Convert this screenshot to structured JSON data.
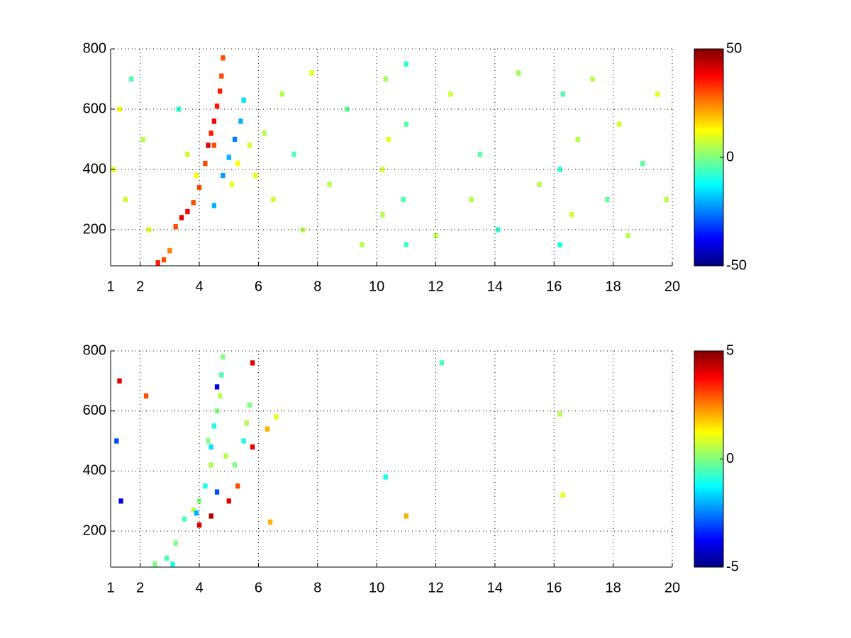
{
  "chart_data": [
    {
      "type": "heatmap",
      "colormap": "jet",
      "xlim": [
        1,
        20
      ],
      "ylim": [
        80,
        800
      ],
      "xticks": [
        1,
        2,
        4,
        6,
        8,
        10,
        12,
        14,
        16,
        18,
        20
      ],
      "yticks": [
        200,
        400,
        600,
        800
      ],
      "clim": [
        -50,
        50
      ],
      "cticks": [
        -50,
        0,
        50
      ],
      "grid": true,
      "x": [
        1.1,
        1.3,
        1.5,
        1.7,
        2.1,
        2.3,
        2.6,
        2.8,
        3.0,
        3.2,
        3.4,
        3.6,
        3.8,
        4.0,
        4.2,
        4.3,
        4.4,
        4.5,
        4.6,
        4.7,
        4.75,
        4.8,
        4.5,
        3.3,
        3.6,
        3.9,
        4.5,
        4.8,
        5.0,
        5.2,
        5.4,
        5.5,
        5.1,
        5.3,
        5.7,
        5.9,
        6.2,
        6.5,
        6.8,
        7.2,
        7.5,
        7.8,
        8.4,
        9.0,
        9.5,
        10.2,
        10.2,
        10.4,
        10.3,
        10.9,
        11.0,
        11.0,
        11.0,
        12.0,
        12.5,
        13.2,
        13.5,
        14.1,
        14.8,
        15.5,
        16.2,
        16.2,
        16.3,
        16.6,
        16.8,
        17.3,
        17.8,
        18.2,
        18.5,
        19.0,
        19.5,
        19.8
      ],
      "y": [
        400,
        600,
        300,
        700,
        500,
        200,
        90,
        100,
        130,
        210,
        240,
        260,
        290,
        340,
        420,
        480,
        520,
        560,
        610,
        660,
        710,
        770,
        480,
        600,
        450,
        380,
        280,
        380,
        440,
        500,
        560,
        630,
        350,
        420,
        480,
        380,
        520,
        300,
        650,
        450,
        200,
        720,
        350,
        600,
        150,
        400,
        250,
        500,
        700,
        300,
        550,
        150,
        750,
        180,
        650,
        300,
        450,
        200,
        720,
        350,
        150,
        400,
        650,
        250,
        500,
        700,
        300,
        550,
        180,
        420,
        650,
        300
      ],
      "values": [
        10,
        12,
        8,
        -5,
        5,
        10,
        35,
        30,
        25,
        30,
        40,
        38,
        30,
        30,
        30,
        40,
        35,
        38,
        35,
        35,
        30,
        30,
        30,
        -8,
        8,
        12,
        -20,
        -22,
        -20,
        -25,
        -20,
        -15,
        10,
        12,
        8,
        10,
        5,
        8,
        5,
        -5,
        5,
        10,
        5,
        -3,
        5,
        8,
        5,
        10,
        3,
        -5,
        -3,
        -6,
        -8,
        5,
        8,
        5,
        -3,
        -8,
        3,
        5,
        -10,
        -8,
        -5,
        8,
        5,
        5,
        -3,
        8,
        5,
        -3,
        10,
        5
      ]
    },
    {
      "type": "heatmap",
      "colormap": "jet",
      "xlim": [
        1,
        20
      ],
      "ylim": [
        80,
        800
      ],
      "xticks": [
        1,
        2,
        4,
        6,
        8,
        10,
        12,
        14,
        16,
        18,
        20
      ],
      "yticks": [
        200,
        400,
        600,
        800
      ],
      "clim": [
        -5,
        5
      ],
      "cticks": [
        -5,
        0,
        5
      ],
      "grid": true,
      "x": [
        1.2,
        1.3,
        1.35,
        2.2,
        2.5,
        2.9,
        3.2,
        3.5,
        3.8,
        4.0,
        4.2,
        4.4,
        4.3,
        4.5,
        4.6,
        4.7,
        4.75,
        4.8,
        4.6,
        4.4,
        4.9,
        5.2,
        5.5,
        5.6,
        5.7,
        4.4,
        4.6,
        5.0,
        5.3,
        5.8,
        5.8,
        6.3,
        6.6,
        4.0,
        3.9,
        10.3,
        11.0,
        12.2,
        16.2,
        16.3,
        6.4,
        3.1
      ],
      "y": [
        500,
        700,
        300,
        650,
        90,
        110,
        160,
        240,
        270,
        300,
        350,
        420,
        500,
        550,
        600,
        650,
        720,
        780,
        680,
        480,
        450,
        420,
        500,
        560,
        620,
        250,
        330,
        300,
        350,
        760,
        480,
        540,
        580,
        220,
        260,
        380,
        250,
        760,
        590,
        320,
        230,
        90
      ],
      "values": [
        -3,
        4,
        -4,
        3,
        0,
        -0.5,
        0,
        -0.5,
        0.5,
        0,
        -1,
        0.5,
        0,
        -1,
        0,
        0.5,
        -0.5,
        0,
        -4,
        -1.5,
        0.5,
        0,
        -1,
        0.5,
        0,
        4.5,
        -3,
        4,
        3,
        4,
        4,
        2,
        1,
        4,
        -2,
        -1,
        2,
        -0.5,
        0.5,
        1,
        2,
        -1
      ]
    }
  ]
}
